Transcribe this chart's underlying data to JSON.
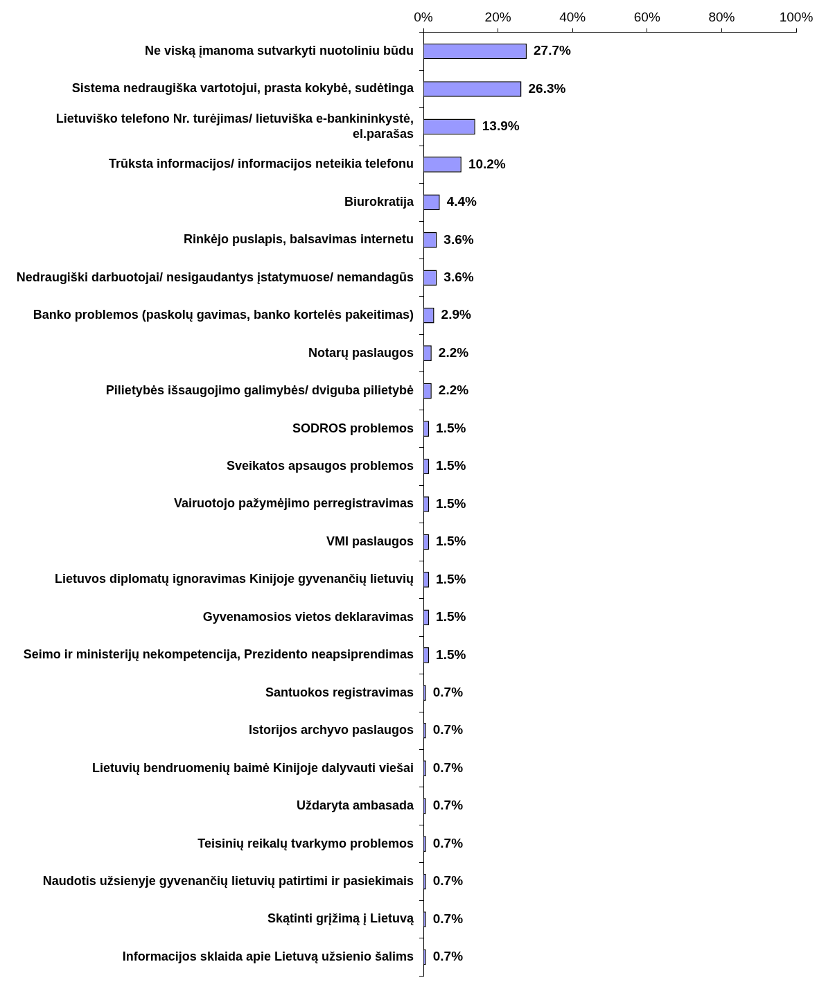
{
  "chart_data": {
    "type": "bar",
    "orientation": "horizontal",
    "categories": [
      "Ne viską įmanoma sutvarkyti nuotoliniu būdu",
      "Sistema nedraugiška vartotojui, prasta kokybė, sudėtinga",
      "Lietuviško telefono Nr. turėjimas/ lietuviška e-bankininkystė, el.parašas",
      "Trūksta informacijos/ informacijos neteikia telefonu",
      "Biurokratija",
      "Rinkėjo puslapis, balsavimas internetu",
      "Nedraugiški darbuotojai/ nesigaudantys įstatymuose/ nemandagūs",
      "Banko problemos (paskolų gavimas, banko kortelės pakeitimas)",
      "Notarų paslaugos",
      "Pilietybės išsaugojimo galimybės/ dviguba pilietybė",
      "SODROS problemos",
      "Sveikatos apsaugos problemos",
      "Vairuotojo pažymėjimo perregistravimas",
      "VMI paslaugos",
      "Lietuvos diplomatų ignoravimas Kinijoje gyvenančių lietuvių",
      "Gyvenamosios vietos deklaravimas",
      "Seimo ir ministerijų nekompetencija, Prezidento neapsiprendimas",
      "Santuokos registravimas",
      "Istorijos archyvo paslaugos",
      "Lietuvių bendruomenių baimė Kinijoje dalyvauti viešai",
      "Uždaryta ambasada",
      "Teisinių reikalų tvarkymo problemos",
      "Naudotis užsienyje gyvenančių lietuvių patirtimi ir pasiekimais",
      "Skątinti grįžimą į Lietuvą",
      "Informacijos sklaida apie Lietuvą užsienio šalims"
    ],
    "values": [
      27.7,
      26.3,
      13.9,
      10.2,
      4.4,
      3.6,
      3.6,
      2.9,
      2.2,
      2.2,
      1.5,
      1.5,
      1.5,
      1.5,
      1.5,
      1.5,
      1.5,
      0.7,
      0.7,
      0.7,
      0.7,
      0.7,
      0.7,
      0.7,
      0.7
    ],
    "value_labels": [
      "27.7%",
      "26.3%",
      "13.9%",
      "10.2%",
      "4.4%",
      "3.6%",
      "3.6%",
      "2.9%",
      "2.2%",
      "2.2%",
      "1.5%",
      "1.5%",
      "1.5%",
      "1.5%",
      "1.5%",
      "1.5%",
      "1.5%",
      "0.7%",
      "0.7%",
      "0.7%",
      "0.7%",
      "0.7%",
      "0.7%",
      "0.7%",
      "0.7%"
    ],
    "color": "#9999ff",
    "xlim": [
      0,
      100
    ],
    "xticks": [
      {
        "value": 0,
        "label": "0%"
      },
      {
        "value": 20,
        "label": "20%"
      },
      {
        "value": 40,
        "label": "40%"
      },
      {
        "value": 60,
        "label": "60%"
      },
      {
        "value": 80,
        "label": "80%"
      },
      {
        "value": 100,
        "label": "100%"
      }
    ]
  }
}
